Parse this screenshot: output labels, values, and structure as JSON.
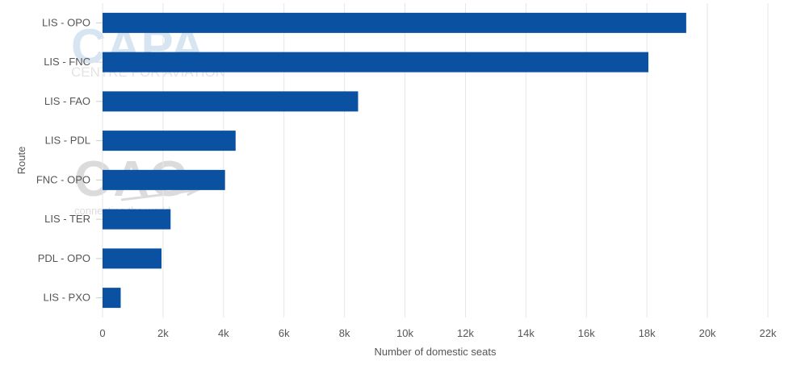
{
  "chart_data": {
    "type": "bar",
    "orientation": "horizontal",
    "categories": [
      "LIS - OPO",
      "LIS - FNC",
      "LIS - FAO",
      "LIS - PDL",
      "FNC - OPO",
      "LIS - TER",
      "PDL - OPO",
      "LIS - PXO"
    ],
    "series": [
      {
        "values": [
          19300,
          18050,
          8450,
          4400,
          4050,
          2250,
          1950,
          600
        ]
      }
    ],
    "xlabel": "Number of domestic seats",
    "ylabel": "Route",
    "xlim": [
      0,
      22000
    ],
    "x_ticks": [
      0,
      2000,
      4000,
      6000,
      8000,
      10000,
      12000,
      14000,
      16000,
      18000,
      20000,
      22000
    ],
    "x_tick_labels": [
      "0",
      "2k",
      "4k",
      "6k",
      "8k",
      "10k",
      "12k",
      "14k",
      "16k",
      "18k",
      "20k",
      "22k"
    ],
    "grid": "vertical",
    "legend": "none",
    "bar_color": "#0a51a1",
    "grid_color": "#e6e6e6"
  },
  "watermarks": {
    "capa_logo": "CAPA",
    "capa_tagline": "CENTRE FOR AVIATION",
    "oag_logo": "OAG",
    "oag_tagline": "connecting the world"
  }
}
